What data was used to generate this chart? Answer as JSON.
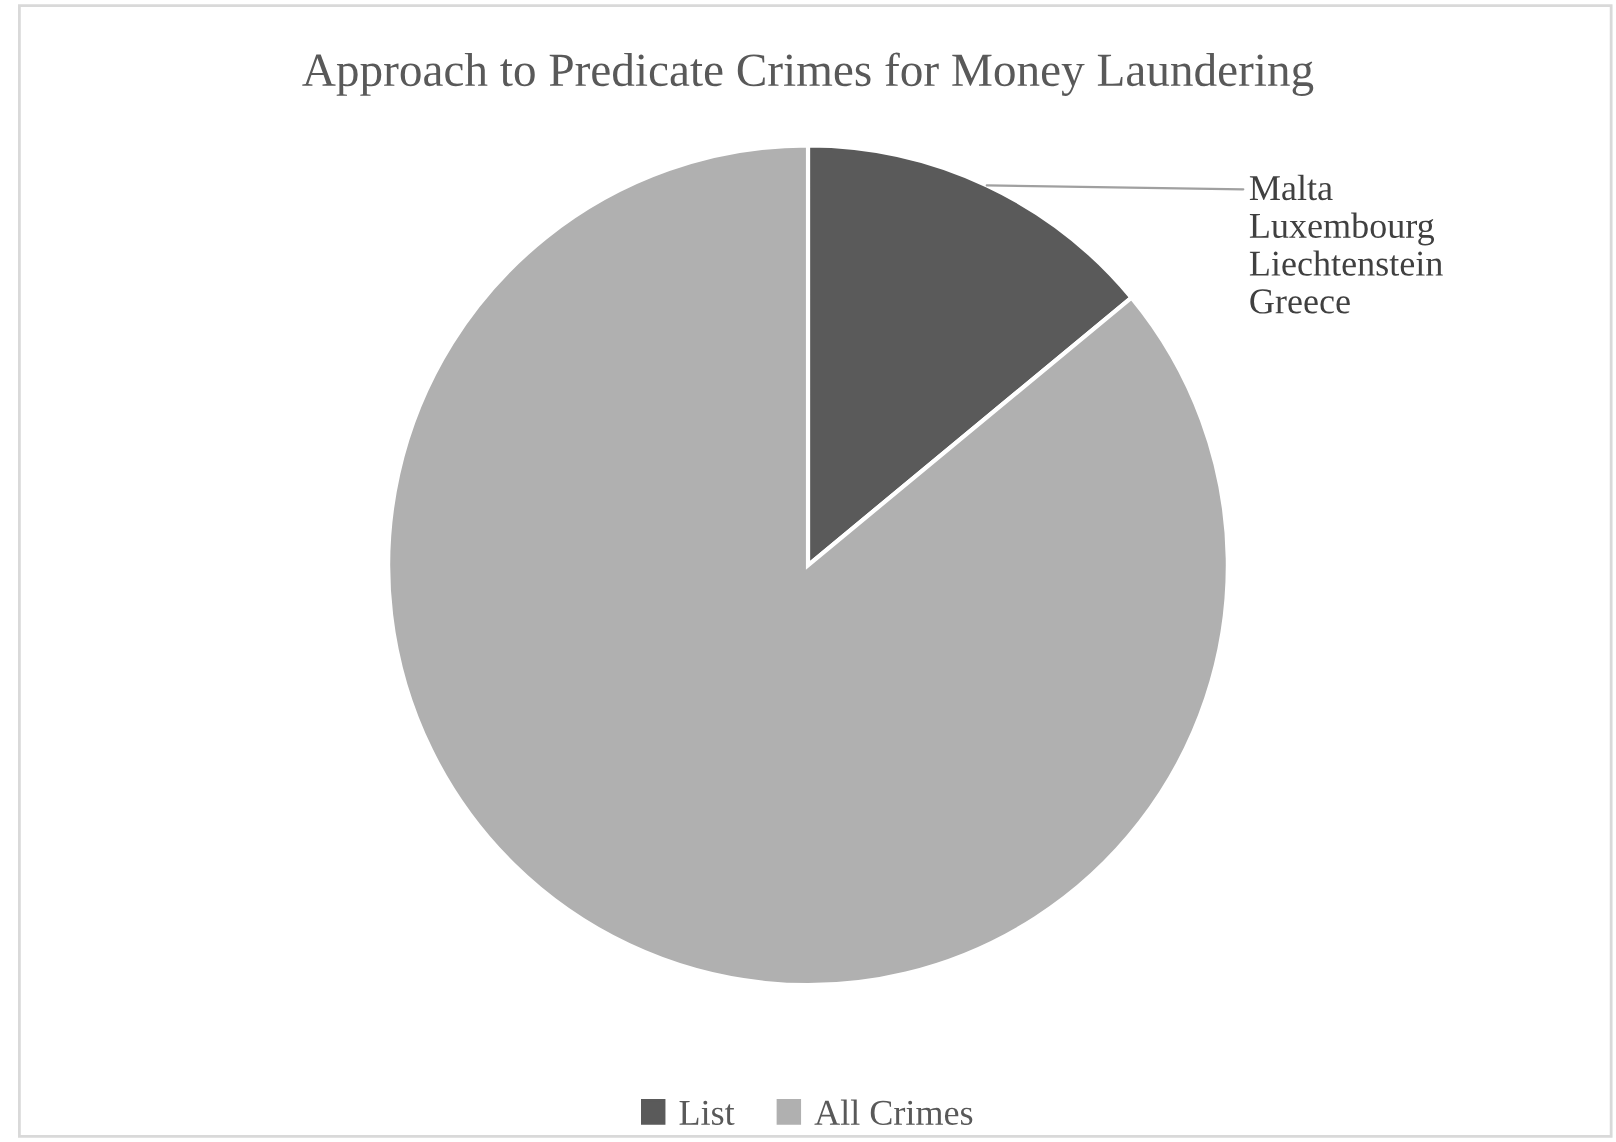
{
  "chart_data": {
    "type": "pie",
    "title": "Approach to Predicate Crimes for Money Laundering",
    "categories": [
      "List",
      "All Crimes"
    ],
    "values": [
      14,
      86
    ],
    "colors": [
      "#5a5a5a",
      "#b0b0b0"
    ],
    "annotations": [
      "Malta\nLuxembourg\nLiechtenstein\nGreece"
    ],
    "legend": "bottom"
  }
}
